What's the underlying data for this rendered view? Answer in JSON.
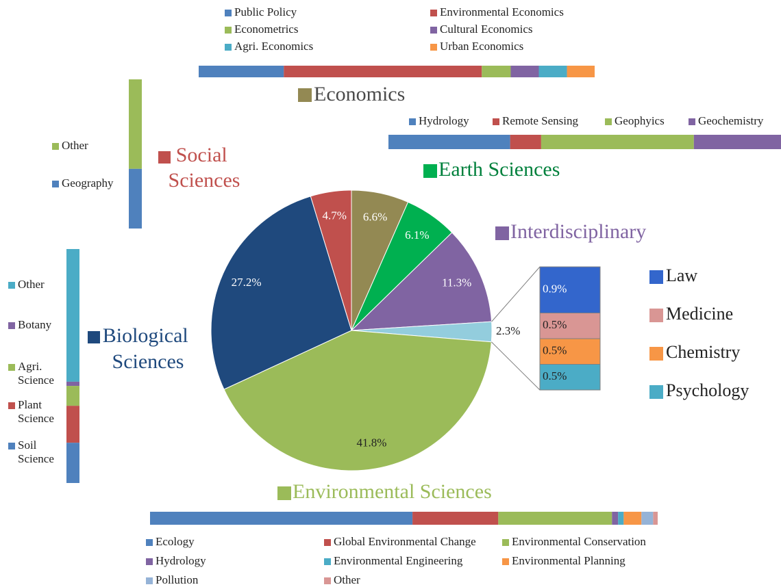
{
  "chart_data": [
    {
      "type": "pie",
      "categories": [
        "Economics",
        "Earth Sciences",
        "Interdisciplinary",
        null,
        "Environmental Sciences",
        "Biological Sciences",
        "Social Sciences"
      ],
      "values": [
        6.6,
        6.1,
        11.3,
        2.3,
        41.8,
        27.2,
        4.7
      ],
      "value_labels": [
        "6.6%",
        "6.1%",
        "11.3%",
        "2.3%",
        "41.8%",
        "27.2%",
        "4.7%"
      ],
      "colors": [
        "#938953",
        "#00b050",
        "#8064a2",
        "#93cddd",
        "#9bbb59",
        "#1f497d",
        "#c0504d"
      ]
    },
    {
      "type": "bar",
      "orientation": "horizontal",
      "stacked": true,
      "categories": [
        "Public Policy",
        "Environmental Economics",
        "Econometrics",
        "Cultural Economics",
        "Agri. Economics",
        "Urban Economics"
      ],
      "values": [
        21.5,
        50,
        7.3,
        7.1,
        7.1,
        7
      ],
      "colors": [
        "#4f81bd",
        "#c0504d",
        "#9bbb59",
        "#8064a2",
        "#4bacc6",
        "#f79646"
      ]
    },
    {
      "type": "bar",
      "orientation": "horizontal",
      "stacked": true,
      "categories": [
        "Hydrology",
        "Remote Sensing",
        "Geophyics",
        "Geochemistry"
      ],
      "values": [
        31,
        7.9,
        38.9,
        22.2
      ],
      "colors": [
        "#4f81bd",
        "#c0504d",
        "#9bbb59",
        "#8064a2"
      ]
    },
    {
      "type": "bar",
      "orientation": "vertical",
      "stacked": true,
      "categories": [
        "Other",
        "Geography"
      ],
      "values": [
        60,
        40
      ],
      "colors": [
        "#9bbb59",
        "#4f81bd"
      ]
    },
    {
      "type": "bar",
      "orientation": "vertical",
      "stacked": true,
      "categories": [
        "Other",
        "Botany",
        "Agri. Science",
        "Plant Science",
        "Soil Science"
      ],
      "values": [
        56.7,
        1.8,
        8.5,
        15.8,
        17.2
      ],
      "colors": [
        "#4bacc6",
        "#8064a2",
        "#9bbb59",
        "#c0504d",
        "#4f81bd"
      ]
    },
    {
      "type": "bar",
      "orientation": "horizontal",
      "stacked": true,
      "categories": [
        "Ecology",
        "Global Environmental Change",
        "Environmental Conservation",
        "Hydrology",
        "Environmental Engineering",
        "Environmental Planning",
        "Pollution",
        "Other"
      ],
      "values": [
        51.7,
        16.9,
        22.4,
        1.2,
        1.1,
        3.5,
        2.3,
        0.9
      ],
      "colors": [
        "#4f81bd",
        "#c0504d",
        "#9bbb59",
        "#8064a2",
        "#4bacc6",
        "#f79646",
        "#95b3d7",
        "#d99694"
      ]
    },
    {
      "type": "bar",
      "orientation": "vertical",
      "stacked": true,
      "categories": [
        "Law",
        "Medicine",
        "Chemistry",
        "Psychology"
      ],
      "values": [
        0.9,
        0.5,
        0.5,
        0.5
      ],
      "value_labels": [
        "0.9%",
        "0.5%",
        "0.5%",
        "0.5%"
      ],
      "colors": [
        "#3366cc",
        "#d99694",
        "#f79646",
        "#4bacc6"
      ]
    }
  ]
}
